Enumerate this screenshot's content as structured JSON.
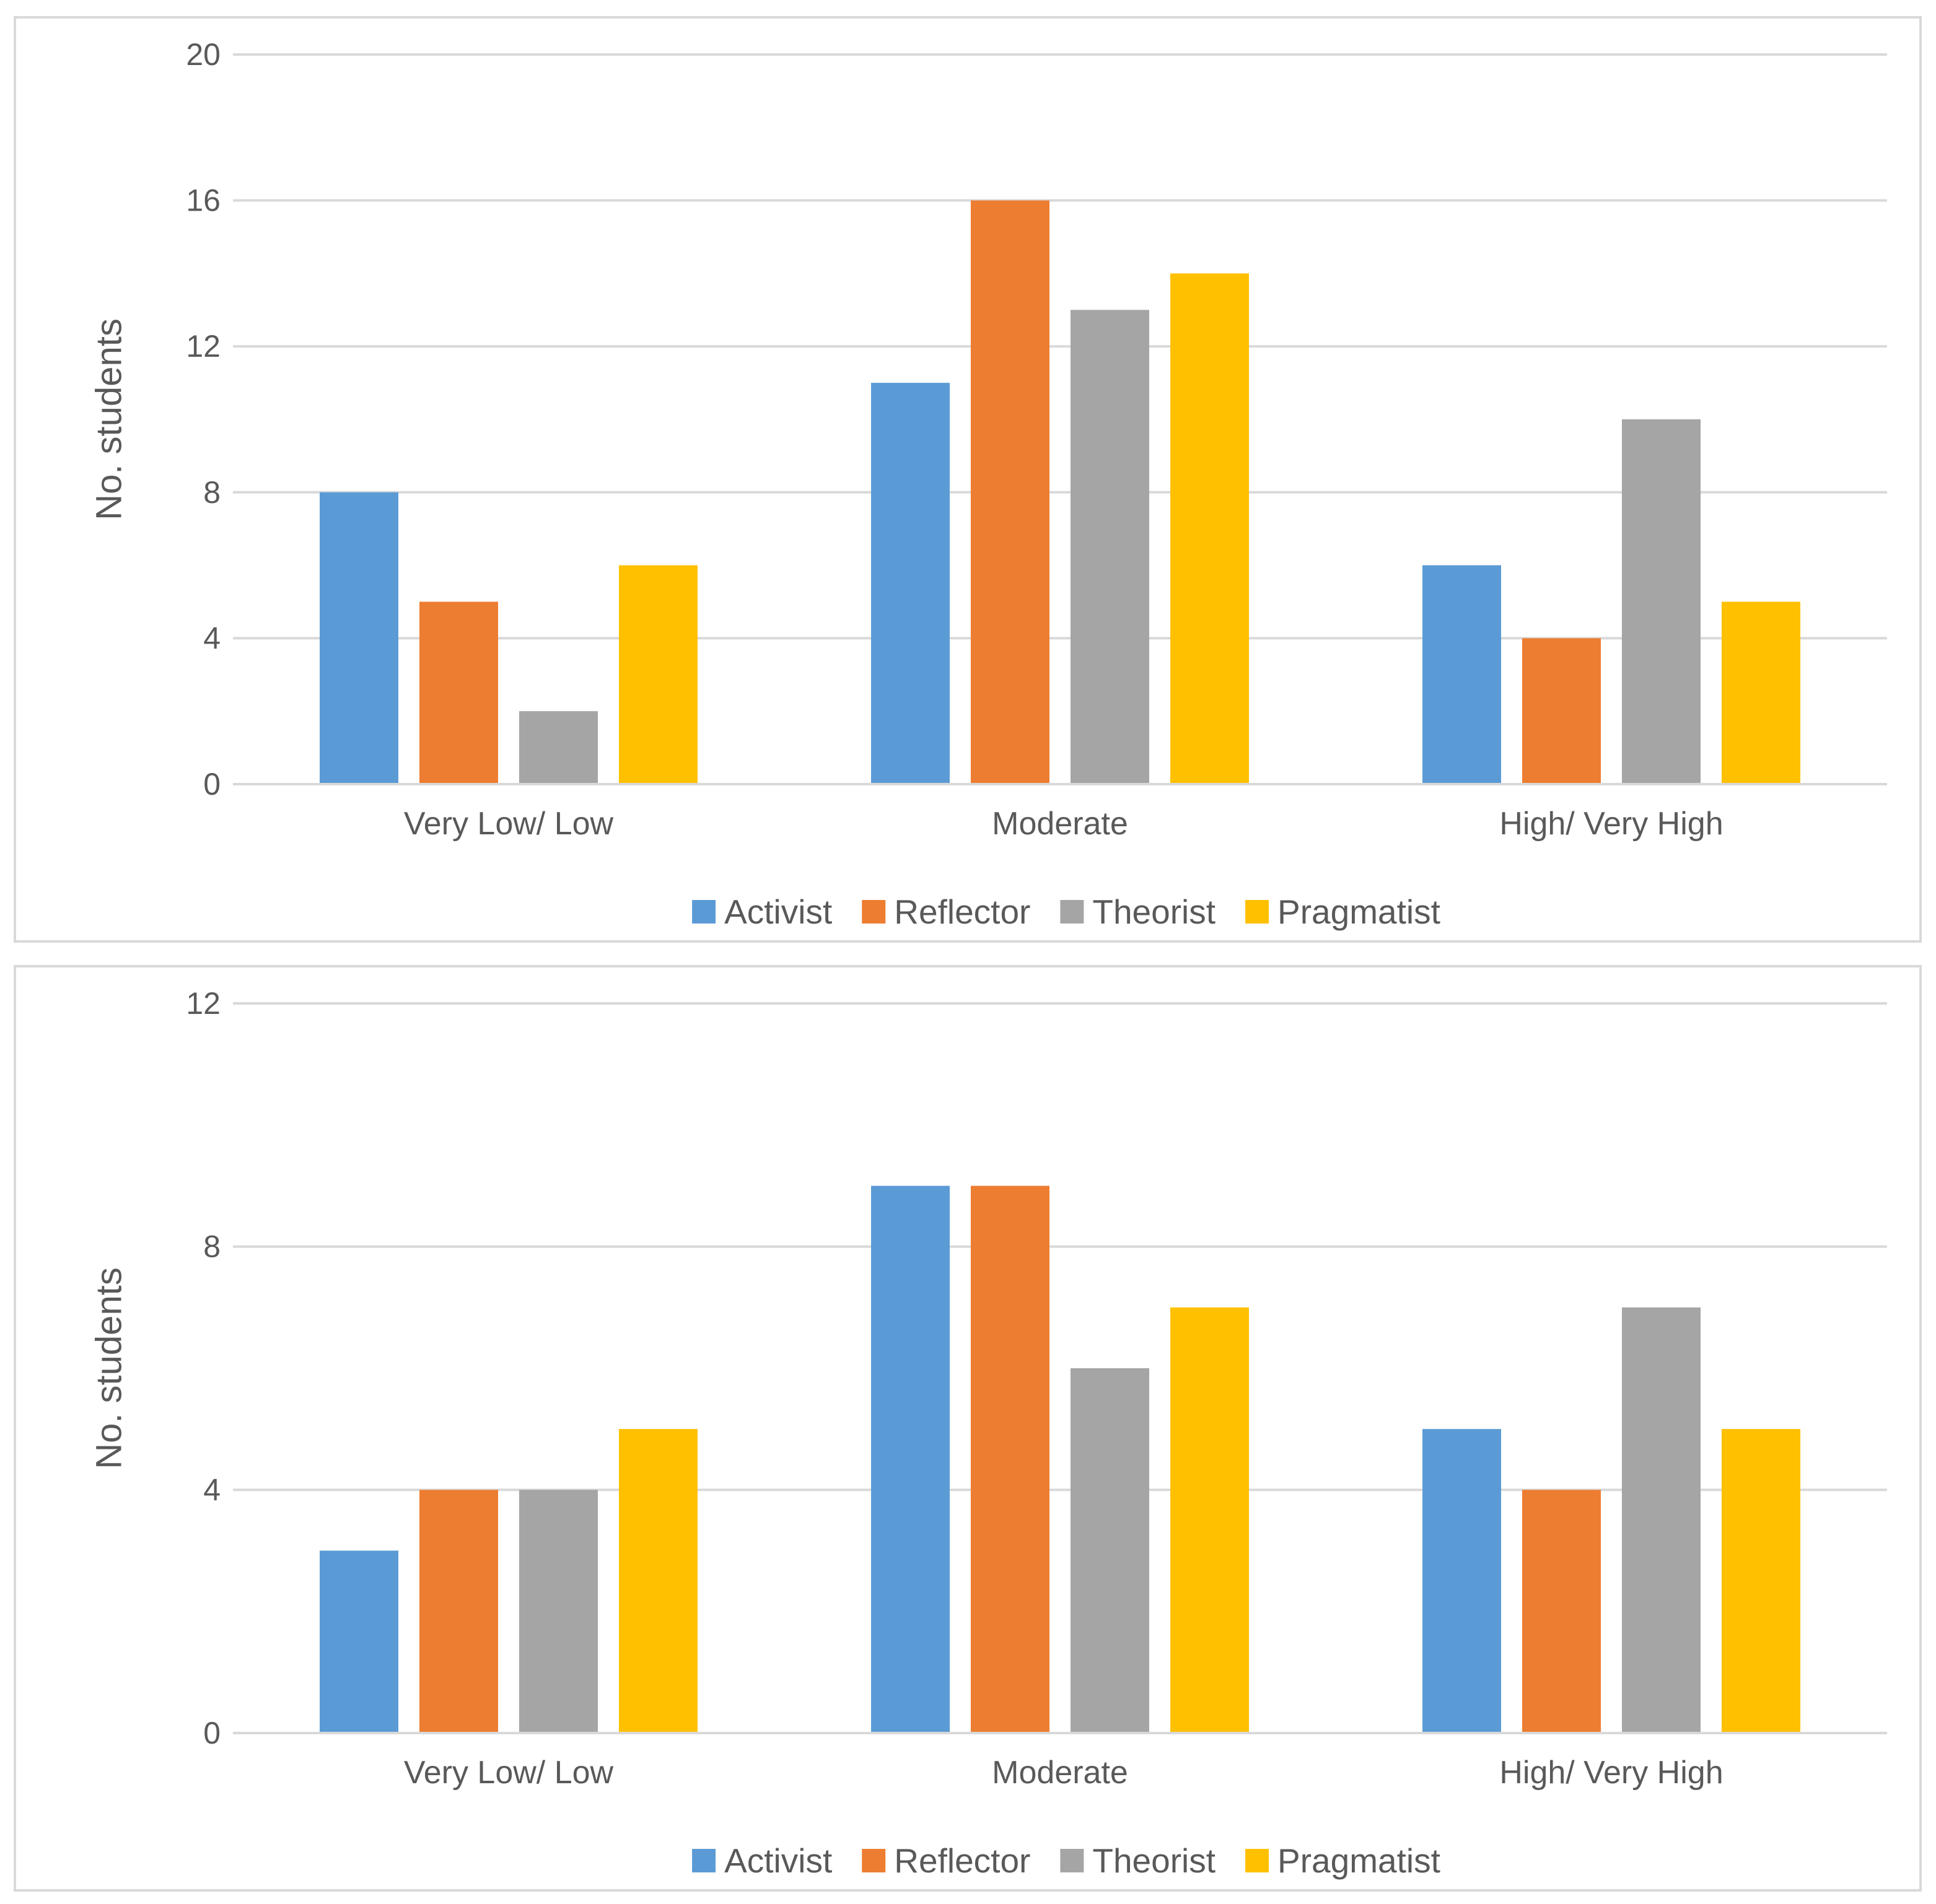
{
  "colors": {
    "activist": "#5b9bd5",
    "reflector": "#ed7d31",
    "theorist": "#a5a5a5",
    "pragmatist": "#ffc000",
    "gridline": "#d9d9d9",
    "axis_text": "#595959"
  },
  "chart_data": [
    {
      "type": "bar",
      "title": "",
      "xlabel": "",
      "ylabel": "No. students",
      "ylim": [
        0,
        20
      ],
      "yticks": [
        "0",
        "4",
        "8",
        "12",
        "16",
        "20"
      ],
      "grid": true,
      "legend_position": "bottom",
      "categories": [
        "Very Low/ Low",
        "Moderate",
        "High/ Very High"
      ],
      "series": [
        {
          "name": "Activist",
          "color_key": "activist",
          "values": [
            8,
            11,
            6
          ]
        },
        {
          "name": "Reflector",
          "color_key": "reflector",
          "values": [
            5,
            16,
            4
          ]
        },
        {
          "name": "Theorist",
          "color_key": "theorist",
          "values": [
            2,
            13,
            10
          ]
        },
        {
          "name": "Pragmatist",
          "color_key": "pragmatist",
          "values": [
            6,
            14,
            5
          ]
        }
      ]
    },
    {
      "type": "bar",
      "title": "",
      "xlabel": "",
      "ylabel": "No. students",
      "ylim": [
        0,
        12
      ],
      "yticks": [
        "0",
        "4",
        "8",
        "12"
      ],
      "grid": true,
      "legend_position": "bottom",
      "categories": [
        "Very Low/ Low",
        "Moderate",
        "High/ Very High"
      ],
      "series": [
        {
          "name": "Activist",
          "color_key": "activist",
          "values": [
            3,
            9,
            5
          ]
        },
        {
          "name": "Reflector",
          "color_key": "reflector",
          "values": [
            4,
            9,
            4
          ]
        },
        {
          "name": "Theorist",
          "color_key": "theorist",
          "values": [
            4,
            6,
            7
          ]
        },
        {
          "name": "Pragmatist",
          "color_key": "pragmatist",
          "values": [
            5,
            7,
            5
          ]
        }
      ]
    }
  ]
}
